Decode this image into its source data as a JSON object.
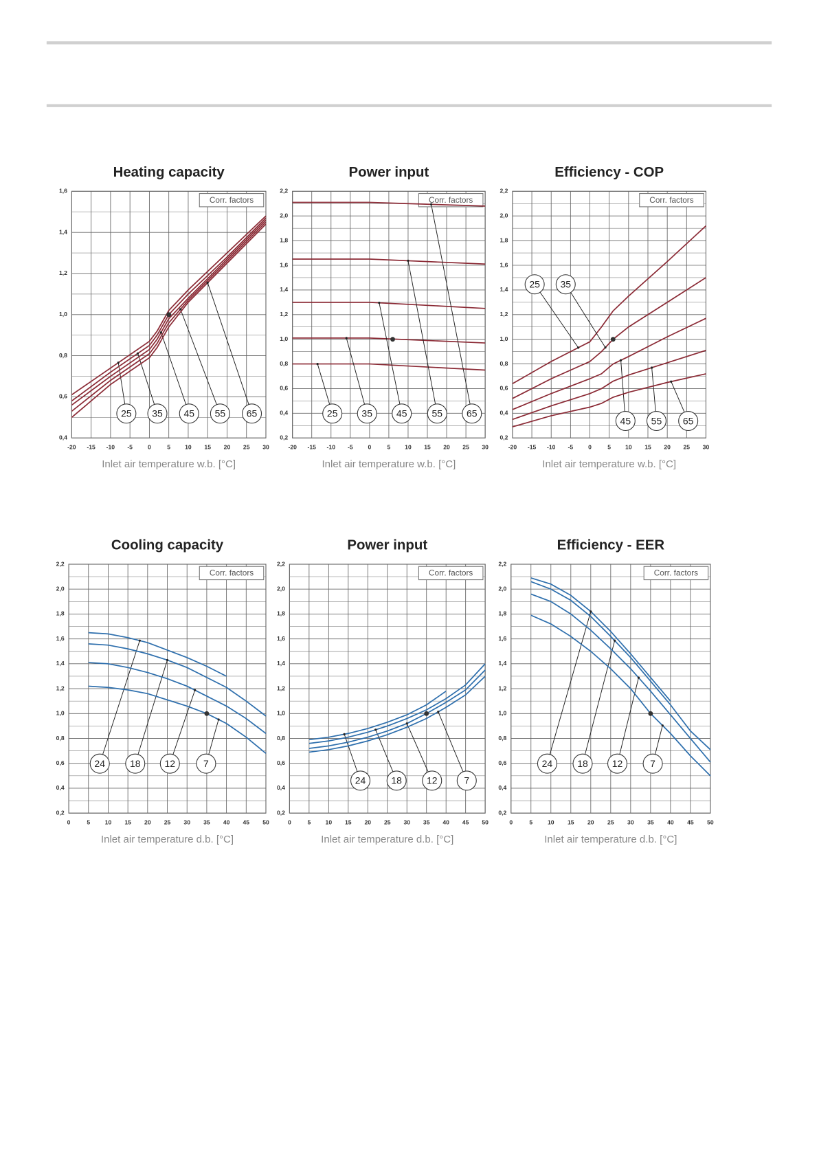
{
  "chart_data": [
    {
      "type": "line",
      "title": "Heating capacity",
      "x_label": "Inlet air temperature w.b.  [°C]",
      "note": "Corr. factors",
      "x": [
        -20,
        -10,
        0,
        2,
        5,
        10,
        20,
        30
      ],
      "series": [
        {
          "name": "25",
          "color": "#8b2a35",
          "values": [
            0.61,
            0.74,
            0.87,
            0.92,
            1.02,
            1.12,
            1.3,
            1.48
          ]
        },
        {
          "name": "35",
          "color": "#8b2a35",
          "values": [
            0.58,
            0.72,
            0.85,
            0.9,
            1.0,
            1.1,
            1.28,
            1.47
          ]
        },
        {
          "name": "45",
          "color": "#8b2a35",
          "values": [
            0.56,
            0.7,
            0.83,
            0.88,
            0.98,
            1.08,
            1.27,
            1.46
          ]
        },
        {
          "name": "55",
          "color": "#8b2a35",
          "values": [
            0.53,
            0.68,
            0.81,
            0.86,
            0.96,
            1.07,
            1.26,
            1.45
          ]
        },
        {
          "name": "65",
          "color": "#8b2a35",
          "values": [
            0.5,
            0.66,
            0.79,
            0.84,
            0.94,
            1.06,
            1.25,
            1.44
          ]
        }
      ],
      "reference_point": {
        "x": 5,
        "y": 1.0
      },
      "xlim": [
        -20,
        30
      ],
      "xticks": [
        -20,
        -15,
        -10,
        -5,
        0,
        5,
        10,
        15,
        20,
        25,
        30
      ],
      "ylim": [
        0.4,
        1.6
      ],
      "yticks": [
        {
          "value": 0.4,
          "label": "0,4"
        },
        {
          "value": 0.6,
          "label": "0,6"
        },
        {
          "value": 0.8,
          "label": "0,8"
        },
        {
          "value": 1.0,
          "label": "1,0"
        },
        {
          "value": 1.2,
          "label": "1,2"
        },
        {
          "value": 1.4,
          "label": "1,4"
        },
        {
          "value": 1.6,
          "label": "1,6"
        }
      ],
      "grid": true
    },
    {
      "type": "line",
      "title": "Power input",
      "x_label": "Inlet air temperature w.b.  [°C]",
      "note": "Corr. factors",
      "x": [
        -20,
        0,
        30
      ],
      "series": [
        {
          "name": "25",
          "color": "#8b2a35",
          "values": [
            0.8,
            0.8,
            0.75
          ]
        },
        {
          "name": "35",
          "color": "#8b2a35",
          "values": [
            1.01,
            1.01,
            0.97
          ]
        },
        {
          "name": "45",
          "color": "#8b2a35",
          "values": [
            1.3,
            1.3,
            1.25
          ]
        },
        {
          "name": "55",
          "color": "#8b2a35",
          "values": [
            1.65,
            1.65,
            1.61
          ]
        },
        {
          "name": "65",
          "color": "#8b2a35",
          "values": [
            2.11,
            2.11,
            2.08
          ]
        }
      ],
      "reference_point": {
        "x": 6,
        "y": 1.0
      },
      "xlim": [
        -20,
        30
      ],
      "xticks": [
        -20,
        -15,
        -10,
        -5,
        0,
        5,
        10,
        15,
        20,
        25,
        30
      ],
      "ylim": [
        0.2,
        2.2
      ],
      "yticks": [
        {
          "value": 0.2,
          "label": "0,2"
        },
        {
          "value": 0.4,
          "label": "0,4"
        },
        {
          "value": 0.6,
          "label": "0,6"
        },
        {
          "value": 0.8,
          "label": "0,8"
        },
        {
          "value": 1.0,
          "label": "1,0"
        },
        {
          "value": 1.2,
          "label": "1,2"
        },
        {
          "value": 1.4,
          "label": "1,4"
        },
        {
          "value": 1.6,
          "label": "1,6"
        },
        {
          "value": 1.8,
          "label": "1,8"
        },
        {
          "value": 2.0,
          "label": "2,0"
        },
        {
          "value": 2.2,
          "label": "2,2"
        }
      ],
      "grid": true
    },
    {
      "type": "line",
      "title": "Efficiency - COP",
      "x_label": "Inlet air temperature w.b.  [°C]",
      "note": "Corr. factors",
      "x": [
        -20,
        -10,
        0,
        3,
        6,
        10,
        20,
        30
      ],
      "series": [
        {
          "name": "25",
          "color": "#8b2a35",
          "values": [
            0.64,
            0.82,
            0.98,
            1.1,
            1.23,
            1.35,
            1.63,
            1.92
          ]
        },
        {
          "name": "35",
          "color": "#8b2a35",
          "values": [
            0.52,
            0.68,
            0.82,
            0.9,
            1.0,
            1.1,
            1.3,
            1.5
          ]
        },
        {
          "name": "45",
          "color": "#8b2a35",
          "values": [
            0.43,
            0.56,
            0.68,
            0.72,
            0.8,
            0.86,
            1.02,
            1.17
          ]
        },
        {
          "name": "55",
          "color": "#8b2a35",
          "values": [
            0.35,
            0.46,
            0.56,
            0.6,
            0.66,
            0.71,
            0.81,
            0.91
          ]
        },
        {
          "name": "65",
          "color": "#8b2a35",
          "values": [
            0.29,
            0.38,
            0.45,
            0.48,
            0.53,
            0.57,
            0.65,
            0.72
          ]
        }
      ],
      "reference_point": {
        "x": 6,
        "y": 1.0
      },
      "xlim": [
        -20,
        30
      ],
      "xticks": [
        -20,
        -15,
        -10,
        -5,
        0,
        5,
        10,
        15,
        20,
        25,
        30
      ],
      "ylim": [
        0.2,
        2.2
      ],
      "yticks": [
        {
          "value": 0.2,
          "label": "0,2"
        },
        {
          "value": 0.4,
          "label": "0,4"
        },
        {
          "value": 0.6,
          "label": "0,6"
        },
        {
          "value": 0.8,
          "label": "0,8"
        },
        {
          "value": 1.0,
          "label": "1,0"
        },
        {
          "value": 1.2,
          "label": "1,2"
        },
        {
          "value": 1.4,
          "label": "1,4"
        },
        {
          "value": 1.6,
          "label": "1,6"
        },
        {
          "value": 1.8,
          "label": "1,8"
        },
        {
          "value": 2.0,
          "label": "2,0"
        },
        {
          "value": 2.2,
          "label": "2,2"
        }
      ],
      "grid": true
    },
    {
      "type": "line",
      "title": "Cooling capacity",
      "x_label": "Inlet air temperature d.b.  [°C]",
      "note": "Corr. factors",
      "x": [
        5,
        10,
        15,
        20,
        25,
        30,
        35,
        40,
        45,
        50
      ],
      "series": [
        {
          "name": "24",
          "color": "#2e6fad",
          "values": [
            1.65,
            1.64,
            1.61,
            1.57,
            1.51,
            1.45,
            1.38,
            1.3,
            null,
            null
          ]
        },
        {
          "name": "18",
          "color": "#2e6fad",
          "values": [
            1.56,
            1.55,
            1.52,
            1.48,
            1.43,
            1.37,
            1.29,
            1.21,
            1.1,
            0.98
          ]
        },
        {
          "name": "12",
          "color": "#2e6fad",
          "values": [
            1.41,
            1.4,
            1.37,
            1.33,
            1.28,
            1.22,
            1.14,
            1.06,
            0.96,
            0.84
          ]
        },
        {
          "name": "7",
          "color": "#2e6fad",
          "values": [
            1.22,
            1.21,
            1.19,
            1.16,
            1.11,
            1.06,
            1.0,
            0.92,
            0.81,
            0.68
          ]
        }
      ],
      "reference_point": {
        "x": 35,
        "y": 1.0
      },
      "xlim": [
        0,
        50
      ],
      "xticks": [
        0,
        5,
        10,
        15,
        20,
        25,
        30,
        35,
        40,
        45,
        50
      ],
      "ylim": [
        0.2,
        2.2
      ],
      "yticks": [
        {
          "value": 0.2,
          "label": "0,2"
        },
        {
          "value": 0.4,
          "label": "0,4"
        },
        {
          "value": 0.6,
          "label": "0,6"
        },
        {
          "value": 0.8,
          "label": "0,8"
        },
        {
          "value": 1.0,
          "label": "1,0"
        },
        {
          "value": 1.2,
          "label": "1,2"
        },
        {
          "value": 1.4,
          "label": "1,4"
        },
        {
          "value": 1.6,
          "label": "1,6"
        },
        {
          "value": 1.8,
          "label": "1,8"
        },
        {
          "value": 2.0,
          "label": "2,0"
        },
        {
          "value": 2.2,
          "label": "2,2"
        }
      ],
      "grid": true
    },
    {
      "type": "line",
      "title": "Power input",
      "x_label": "Inlet air temperature d.b.  [°C]",
      "note": "Corr. factors",
      "x": [
        5,
        10,
        15,
        20,
        25,
        30,
        35,
        40,
        45,
        50
      ],
      "series": [
        {
          "name": "24",
          "color": "#2e6fad",
          "values": [
            0.79,
            0.81,
            0.84,
            0.88,
            0.93,
            0.99,
            1.07,
            1.18,
            null,
            null
          ]
        },
        {
          "name": "18",
          "color": "#2e6fad",
          "values": [
            0.76,
            0.78,
            0.81,
            0.85,
            0.9,
            0.96,
            1.03,
            1.12,
            1.23,
            1.4
          ]
        },
        {
          "name": "12",
          "color": "#2e6fad",
          "values": [
            0.72,
            0.74,
            0.77,
            0.81,
            0.86,
            0.92,
            1.0,
            1.09,
            1.19,
            1.35
          ]
        },
        {
          "name": "7",
          "color": "#2e6fad",
          "values": [
            0.69,
            0.71,
            0.74,
            0.78,
            0.83,
            0.89,
            0.96,
            1.05,
            1.15,
            1.3
          ]
        }
      ],
      "reference_point": {
        "x": 35,
        "y": 1.0
      },
      "xlim": [
        0,
        50
      ],
      "xticks": [
        0,
        5,
        10,
        15,
        20,
        25,
        30,
        35,
        40,
        45,
        50
      ],
      "ylim": [
        0.2,
        2.2
      ],
      "yticks": [
        {
          "value": 0.2,
          "label": "0,2"
        },
        {
          "value": 0.4,
          "label": "0,4"
        },
        {
          "value": 0.6,
          "label": "0,6"
        },
        {
          "value": 0.8,
          "label": "0,8"
        },
        {
          "value": 1.0,
          "label": "1,0"
        },
        {
          "value": 1.2,
          "label": "1,2"
        },
        {
          "value": 1.4,
          "label": "1,4"
        },
        {
          "value": 1.6,
          "label": "1,6"
        },
        {
          "value": 1.8,
          "label": "1,8"
        },
        {
          "value": 2.0,
          "label": "2,0"
        },
        {
          "value": 2.2,
          "label": "2,2"
        }
      ],
      "grid": true
    },
    {
      "type": "line",
      "title": "Efficiency - EER",
      "x_label": "Inlet air temperature d.b.  [°C]",
      "note": "Corr. factors",
      "x": [
        5,
        10,
        15,
        20,
        25,
        30,
        35,
        40,
        45,
        50
      ],
      "series": [
        {
          "name": "24",
          "color": "#2e6fad",
          "values": [
            2.09,
            2.04,
            1.95,
            1.82,
            1.66,
            1.48,
            1.29,
            1.1,
            null,
            null
          ]
        },
        {
          "name": "18",
          "color": "#2e6fad",
          "values": [
            2.06,
            2.0,
            1.91,
            1.78,
            1.62,
            1.45,
            1.26,
            1.07,
            0.86,
            0.71
          ]
        },
        {
          "name": "12",
          "color": "#2e6fad",
          "values": [
            1.96,
            1.9,
            1.8,
            1.67,
            1.52,
            1.36,
            1.18,
            0.99,
            0.8,
            0.61
          ]
        },
        {
          "name": "7",
          "color": "#2e6fad",
          "values": [
            1.79,
            1.72,
            1.62,
            1.5,
            1.36,
            1.2,
            1.0,
            0.84,
            0.66,
            0.5
          ]
        }
      ],
      "reference_point": {
        "x": 35,
        "y": 1.0
      },
      "xlim": [
        0,
        50
      ],
      "xticks": [
        0,
        5,
        10,
        15,
        20,
        25,
        30,
        35,
        40,
        45,
        50
      ],
      "ylim": [
        0.2,
        2.2
      ],
      "yticks": [
        {
          "value": 0.2,
          "label": "0,2"
        },
        {
          "value": 0.4,
          "label": "0,4"
        },
        {
          "value": 0.6,
          "label": "0,6"
        },
        {
          "value": 0.8,
          "label": "0,8"
        },
        {
          "value": 1.0,
          "label": "1,0"
        },
        {
          "value": 1.2,
          "label": "1,2"
        },
        {
          "value": 1.4,
          "label": "1,4"
        },
        {
          "value": 1.6,
          "label": "1,6"
        },
        {
          "value": 1.8,
          "label": "1,8"
        },
        {
          "value": 2.0,
          "label": "2,0"
        },
        {
          "value": 2.2,
          "label": "2,2"
        }
      ],
      "grid": true
    }
  ]
}
